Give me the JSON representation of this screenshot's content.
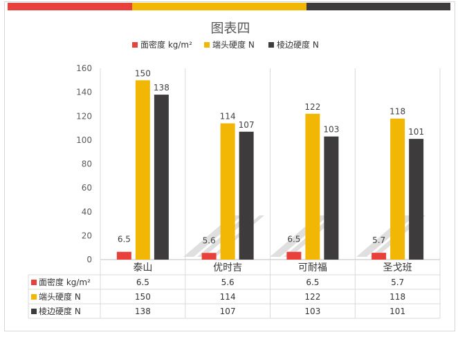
{
  "colors": {
    "density": "#e8403a",
    "end_hardness": "#f2b705",
    "edge_hardness": "#3d3b3c",
    "header_red": "#e8403a",
    "header_yellow": "#f2b705",
    "header_dark": "#3d3b3c"
  },
  "chart_data": {
    "type": "bar",
    "title": "图表四",
    "categories": [
      "泰山",
      "优时吉",
      "可耐福",
      "圣戈班"
    ],
    "series": [
      {
        "name": "面密度 kg/m²",
        "values": [
          6.5,
          5.6,
          6.5,
          5.7
        ],
        "labels": [
          "6.5",
          "5.6",
          "6.5",
          "5.7"
        ]
      },
      {
        "name": "端头硬度 N",
        "values": [
          150,
          114,
          122,
          118
        ],
        "labels": [
          "150",
          "114",
          "122",
          "118"
        ]
      },
      {
        "name": "棱边硬度 N",
        "values": [
          138,
          107,
          103,
          101
        ],
        "labels": [
          "138",
          "107",
          "103",
          "101"
        ]
      }
    ],
    "ylim": [
      0,
      160
    ],
    "yticks": [
      "0",
      "20",
      "40",
      "60",
      "80",
      "100",
      "120",
      "140",
      "160"
    ],
    "legend_position": "top",
    "data_table": true
  }
}
